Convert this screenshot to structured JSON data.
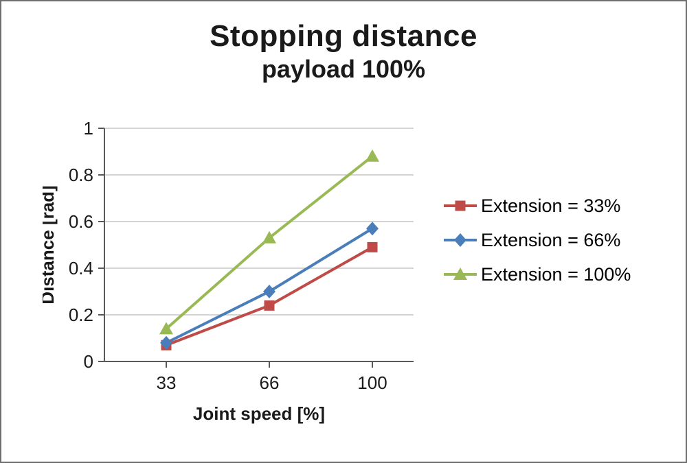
{
  "title": "Stopping distance",
  "subtitle": "payload 100%",
  "chart_data": {
    "type": "line",
    "categories": [
      "33",
      "66",
      "100"
    ],
    "series": [
      {
        "name": "Extension = 33%",
        "color": "#BE4B48",
        "marker": "square",
        "values": [
          0.07,
          0.24,
          0.49
        ]
      },
      {
        "name": "Extension = 66%",
        "color": "#4A7EBB",
        "marker": "diamond",
        "values": [
          0.08,
          0.3,
          0.57
        ]
      },
      {
        "name": "Extension = 100%",
        "color": "#98B954",
        "marker": "triangle",
        "values": [
          0.14,
          0.53,
          0.88
        ]
      }
    ],
    "xlabel": "Joint speed [%]",
    "ylabel": "Distance [rad]",
    "ylim": [
      0,
      1
    ],
    "yticks": [
      0,
      0.2,
      0.4,
      0.6,
      0.8,
      1
    ],
    "grid": true,
    "legend_position": "right",
    "grid_color": "#C6C6C6",
    "axis_color": "#595959",
    "text_color": "#1a1a1a"
  }
}
